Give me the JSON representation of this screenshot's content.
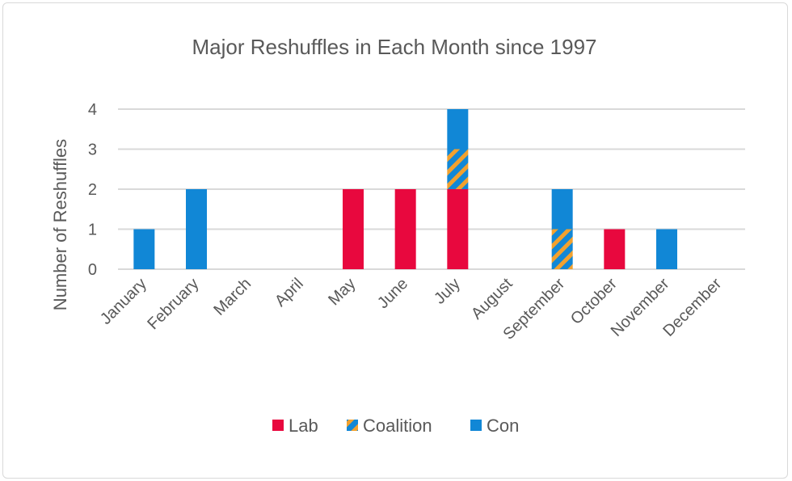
{
  "chart_data": {
    "type": "bar",
    "stacked": true,
    "title": "Major Reshuffles in Each Month since 1997",
    "xlabel": "",
    "ylabel": "Number of Reshuffles",
    "ylim": [
      0,
      4
    ],
    "yticks": [
      0,
      1,
      2,
      3,
      4
    ],
    "grid": true,
    "legend_position": "bottom",
    "categories": [
      "January",
      "February",
      "March",
      "April",
      "May",
      "June",
      "July",
      "August",
      "September",
      "October",
      "November",
      "December"
    ],
    "series": [
      {
        "name": "Lab",
        "color": "#e8083e",
        "pattern": "solid",
        "values": [
          0,
          0,
          0,
          0,
          2,
          2,
          2,
          0,
          0,
          1,
          0,
          0
        ]
      },
      {
        "name": "Coalition",
        "color": "#f2a12e",
        "color2": "#1187d6",
        "pattern": "diagonal-stripes",
        "values": [
          0,
          0,
          0,
          0,
          0,
          0,
          1,
          0,
          1,
          0,
          0,
          0
        ]
      },
      {
        "name": "Con",
        "color": "#1187d6",
        "pattern": "solid",
        "values": [
          1,
          2,
          0,
          0,
          0,
          0,
          1,
          0,
          1,
          0,
          1,
          0
        ]
      }
    ]
  }
}
